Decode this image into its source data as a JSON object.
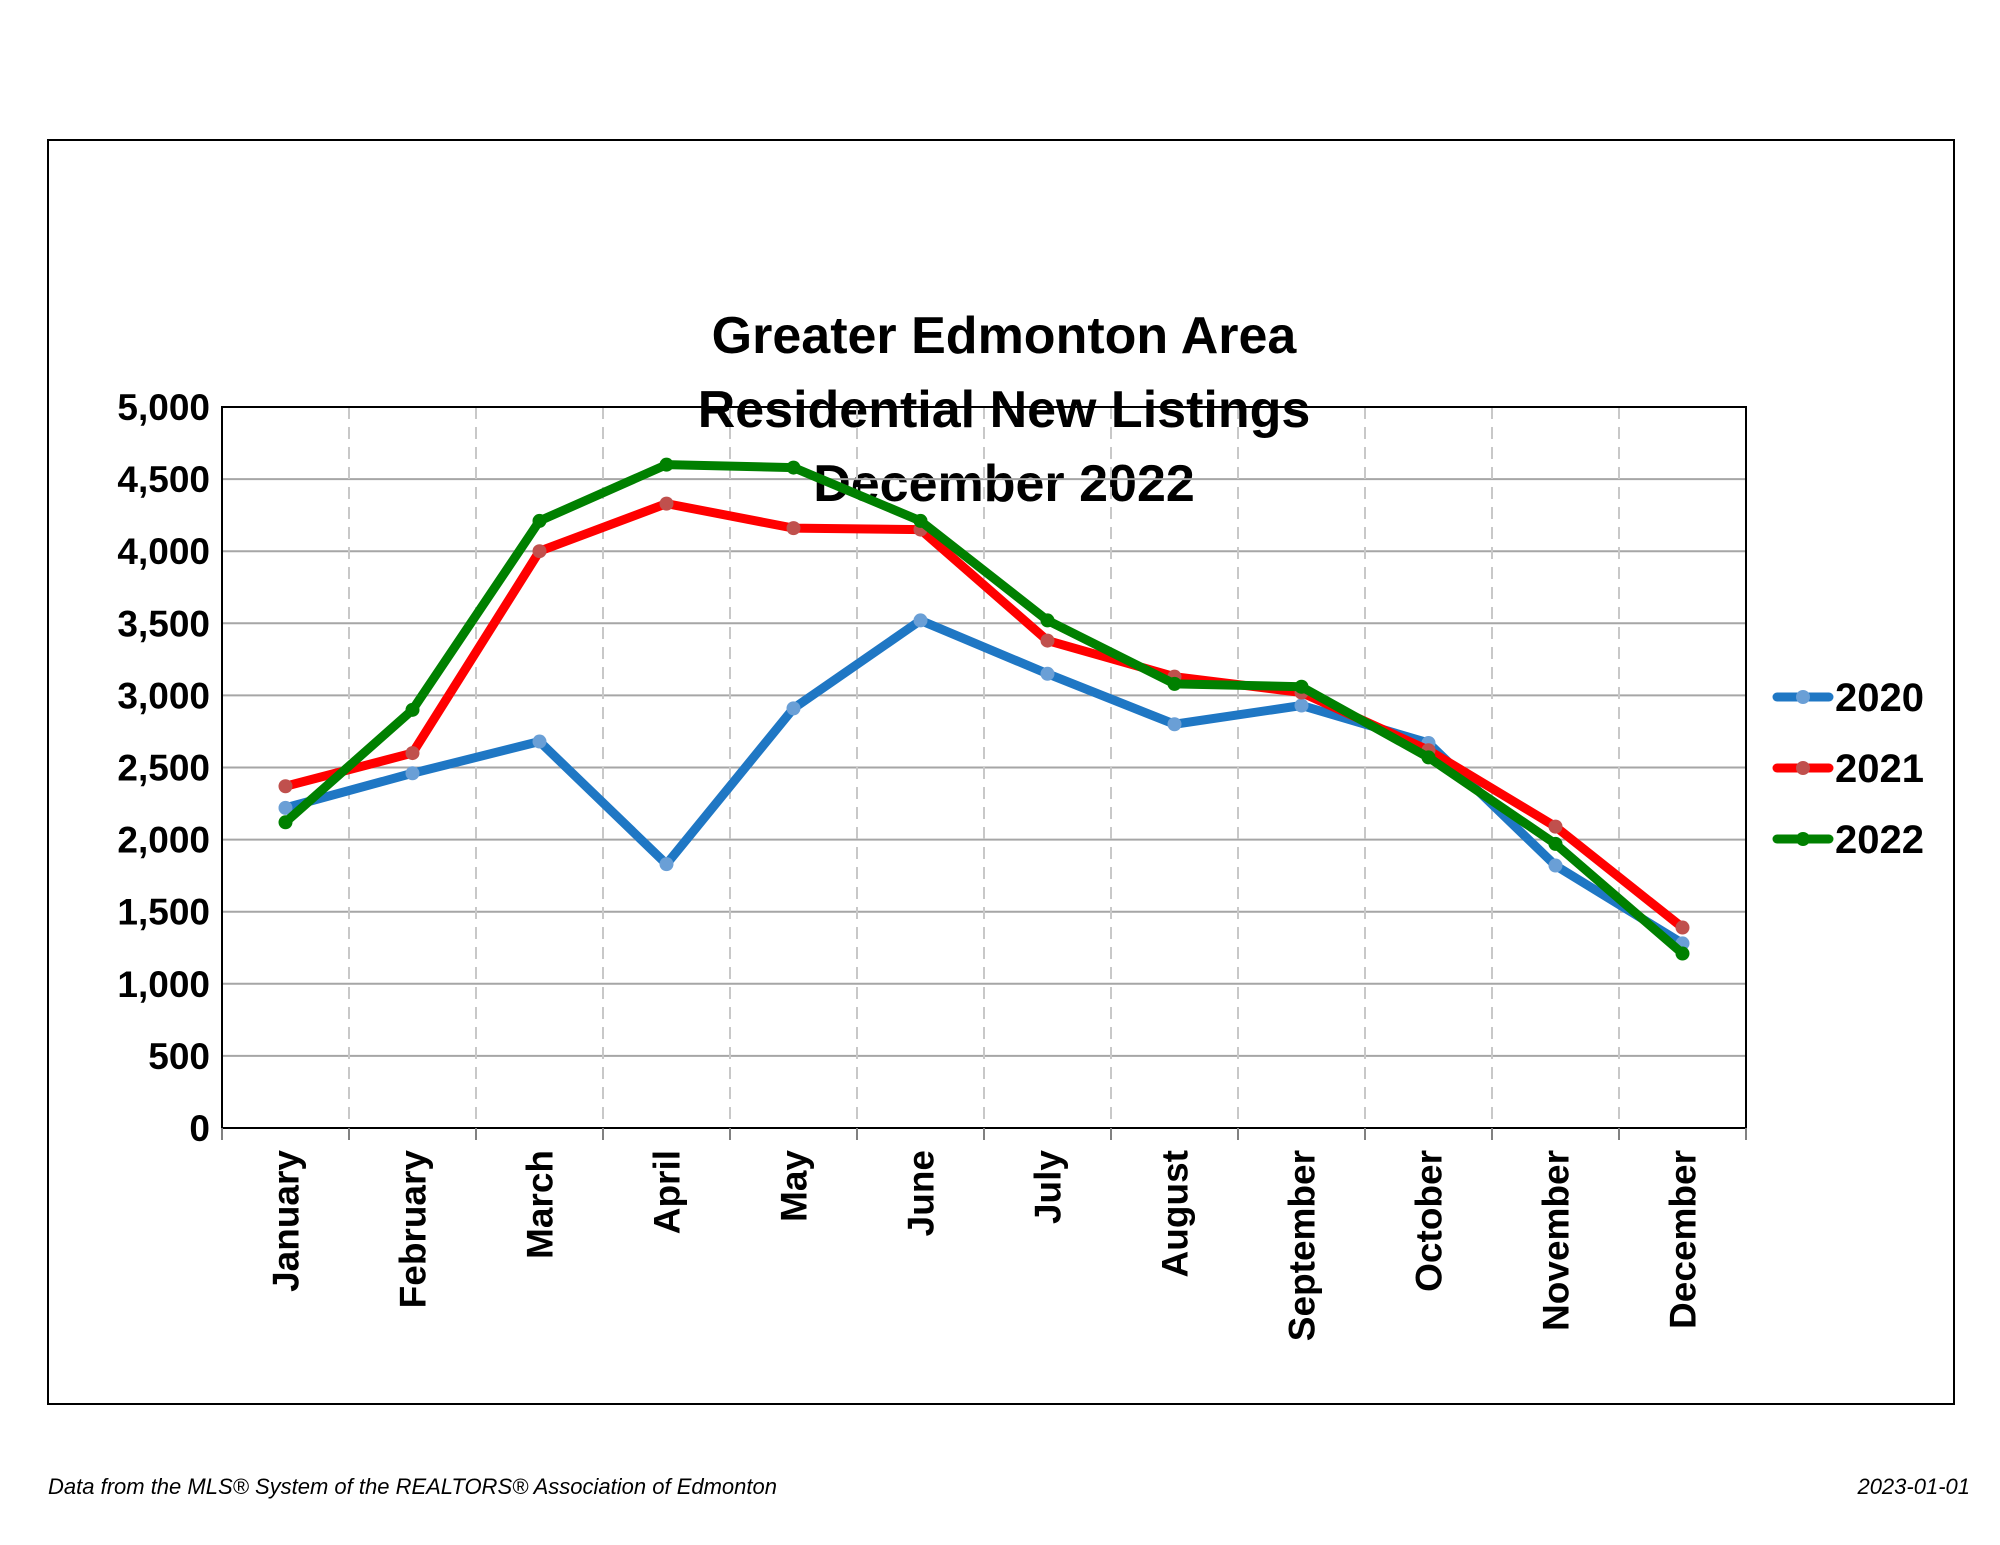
{
  "chart_data": {
    "type": "line",
    "title_lines": [
      "Greater Edmonton Area",
      "Residential New Listings",
      "December 2022"
    ],
    "categories": [
      "January",
      "February",
      "March",
      "April",
      "May",
      "June",
      "July",
      "August",
      "September",
      "October",
      "November",
      "December"
    ],
    "series": [
      {
        "name": "2020",
        "color": "#1f77c4",
        "marker_color": "#6a9fd6",
        "values": [
          2220,
          2460,
          2680,
          1830,
          2910,
          3520,
          3150,
          2800,
          2930,
          2670,
          1820,
          1280
        ]
      },
      {
        "name": "2021",
        "color": "#ff0000",
        "marker_color": "#c0504d",
        "values": [
          2370,
          2600,
          4000,
          4330,
          4160,
          4150,
          3380,
          3130,
          3020,
          2620,
          2090,
          1390
        ]
      },
      {
        "name": "2022",
        "color": "#008000",
        "marker_color": "#008000",
        "values": [
          2120,
          2900,
          4210,
          4600,
          4580,
          4210,
          3520,
          3080,
          3060,
          2570,
          1970,
          1210
        ]
      }
    ],
    "ylim": [
      0,
      5000
    ],
    "yticks": [
      0,
      500,
      1000,
      1500,
      2000,
      2500,
      3000,
      3500,
      4000,
      4500,
      5000
    ],
    "ytick_labels": [
      "0",
      "500",
      "1,000",
      "1,500",
      "2,000",
      "2,500",
      "3,000",
      "3,500",
      "4,000",
      "4,500",
      "5,000"
    ],
    "grid": true,
    "legend_position": "right"
  },
  "footer": {
    "source": "Data from the MLS® System of the REALTORS® Association of Edmonton",
    "date": "2023-01-01"
  }
}
